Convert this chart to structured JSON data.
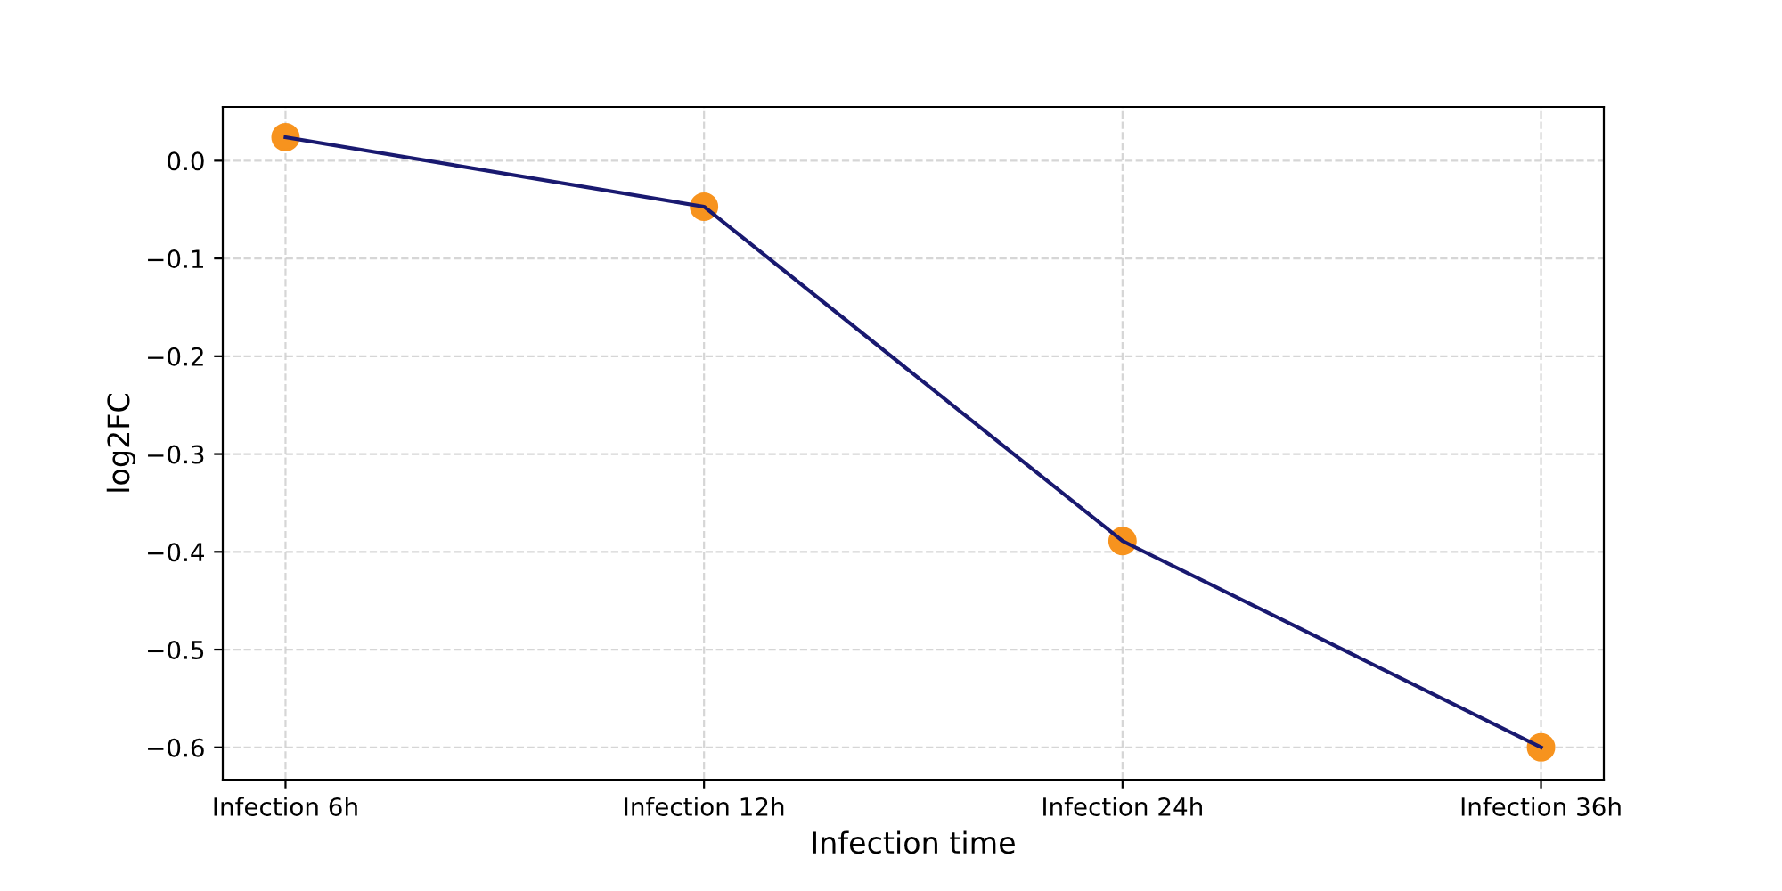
{
  "chart_data": {
    "type": "line",
    "xlabel": "Infection time",
    "ylabel": "log2FC",
    "categories": [
      "Infection 6h",
      "Infection 12h",
      "Infection 24h",
      "Infection 36h"
    ],
    "series": [
      {
        "type": "scatter",
        "color": "#f7931e",
        "x": [
          "Infection 6h",
          "Infection 12h",
          "Infection 24h",
          "Infection 36h"
        ],
        "values": [
          0.024,
          -0.047,
          -0.389,
          -0.6
        ],
        "marker": "circle"
      },
      {
        "color": "#191970",
        "values": [
          0.024,
          -0.047,
          -0.389,
          -0.6
        ],
        "marker": "none"
      }
    ],
    "ylim": [
      -0.633,
      0.055
    ],
    "yticks": [
      {
        "value": 0,
        "label": "0.0"
      },
      -0.1,
      -0.2,
      -0.3,
      -0.4,
      -0.5,
      -0.6
    ],
    "grid": true,
    "line_style": "solid",
    "legend": false
  }
}
